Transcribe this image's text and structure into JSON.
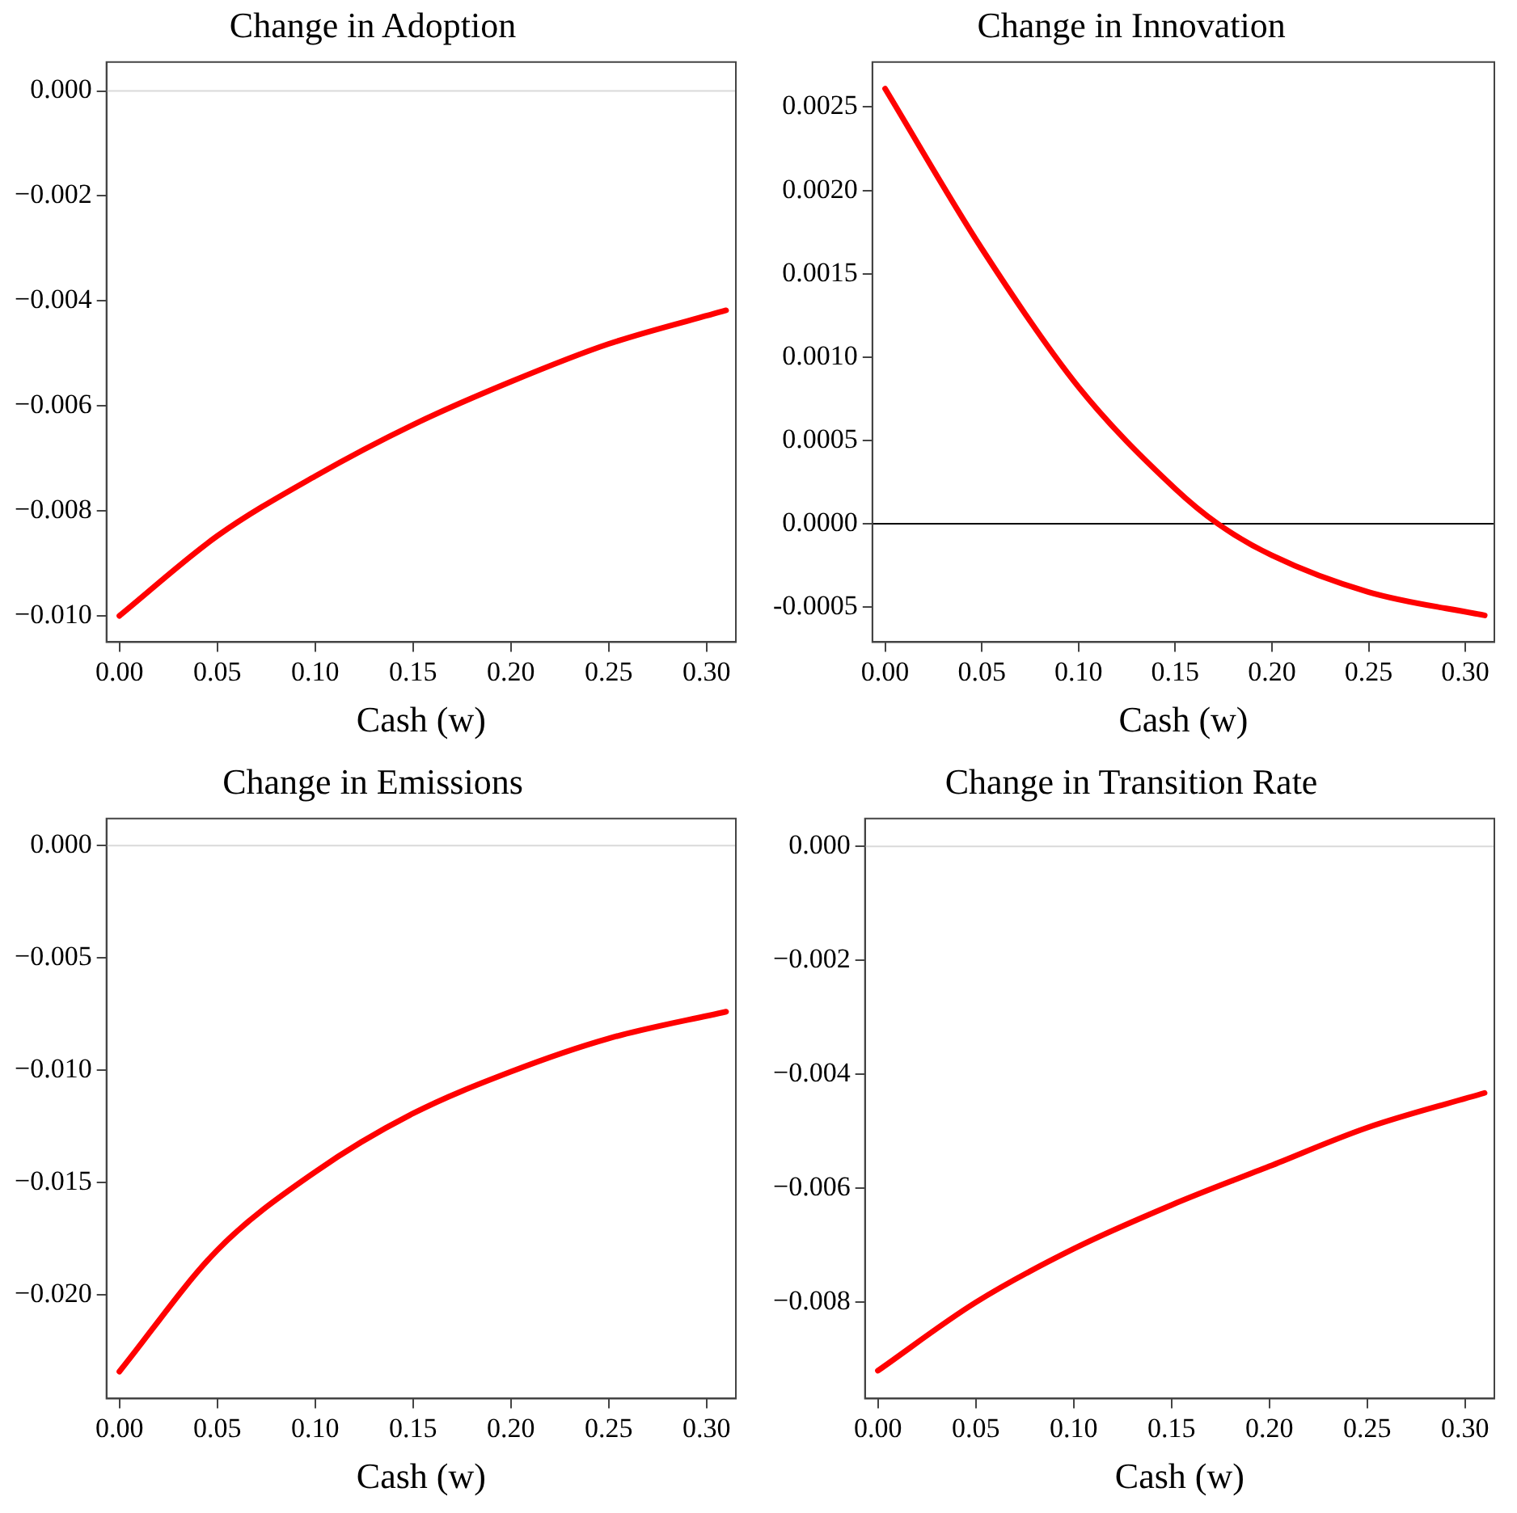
{
  "chart_data": [
    {
      "type": "line",
      "title": "Change in Adoption",
      "xlabel": "Cash (w)",
      "x": [
        0,
        0.05,
        0.1,
        0.15,
        0.2,
        0.25,
        0.31
      ],
      "series": [
        {
          "color": "#ff0000",
          "values": [
            -0.01,
            -0.00848,
            -0.00734,
            -0.00636,
            -0.00554,
            -0.00482,
            -0.00418
          ]
        }
      ],
      "xlim": [
        -0.0066,
        0.315
      ],
      "xticks": [
        {
          "value": 0,
          "label": "0.00"
        },
        0.05,
        {
          "value": 0.1,
          "label": "0.10"
        },
        0.15,
        {
          "value": 0.2,
          "label": "0.20"
        },
        0.25,
        {
          "value": 0.3,
          "label": "0.30"
        }
      ],
      "ylim": [
        -0.0105,
        0.00055
      ],
      "yticks": [
        {
          "value": -0.01,
          "label": "−0.010"
        },
        {
          "value": -0.008,
          "label": "−0.008"
        },
        {
          "value": -0.006,
          "label": "−0.006"
        },
        {
          "value": -0.004,
          "label": "−0.004"
        },
        {
          "value": -0.002,
          "label": "−0.002"
        },
        {
          "value": 0,
          "label": "0.000"
        }
      ],
      "ref_lines": [
        {
          "axis": "y",
          "value": 0,
          "color": "#d9d9d9"
        }
      ],
      "grid": false,
      "legend": false
    },
    {
      "type": "line",
      "title": "Change in Innovation",
      "xlabel": "Cash (w)",
      "x": [
        0,
        0.05,
        0.1,
        0.15,
        0.172,
        0.2,
        0.25,
        0.31
      ],
      "series": [
        {
          "color": "#ff0000",
          "values": [
            0.00261,
            0.00165,
            0.00082,
            0.00021,
            0,
            -0.00019,
            -0.00041,
            -0.00055
          ]
        }
      ],
      "xlim": [
        -0.0066,
        0.315
      ],
      "xticks": [
        {
          "value": 0,
          "label": "0.00"
        },
        0.05,
        {
          "value": 0.1,
          "label": "0.10"
        },
        0.15,
        {
          "value": 0.2,
          "label": "0.20"
        },
        0.25,
        {
          "value": 0.3,
          "label": "0.30"
        }
      ],
      "ylim": [
        -0.00071,
        0.00277
      ],
      "yticks": [
        {
          "value": -0.0005,
          "label": "-0.0005"
        },
        {
          "value": 0,
          "label": "0.0000"
        },
        0.0005,
        {
          "value": 0.001,
          "label": "0.0010"
        },
        0.0015,
        {
          "value": 0.002,
          "label": "0.0020"
        },
        0.0025
      ],
      "ref_lines": [
        {
          "axis": "y",
          "value": 0,
          "color": "#000000"
        }
      ],
      "grid": false,
      "legend": false
    },
    {
      "type": "line",
      "title": "Change in Emissions",
      "xlabel": "Cash (w)",
      "x": [
        0,
        0.05,
        0.1,
        0.15,
        0.2,
        0.25,
        0.31
      ],
      "series": [
        {
          "color": "#ff0000",
          "values": [
            -0.0234,
            -0.018,
            -0.01452,
            -0.01192,
            -0.01006,
            -0.00858,
            -0.00739
          ]
        }
      ],
      "xlim": [
        -0.0066,
        0.315
      ],
      "xticks": [
        {
          "value": 0,
          "label": "0.00"
        },
        0.05,
        {
          "value": 0.1,
          "label": "0.10"
        },
        0.15,
        {
          "value": 0.2,
          "label": "0.20"
        },
        0.25,
        {
          "value": 0.3,
          "label": "0.30"
        }
      ],
      "ylim": [
        -0.0246,
        0.0012
      ],
      "yticks": [
        {
          "value": -0.02,
          "label": "−0.020"
        },
        {
          "value": -0.015,
          "label": "−0.015"
        },
        {
          "value": -0.01,
          "label": "−0.010"
        },
        {
          "value": -0.005,
          "label": "−0.005"
        },
        {
          "value": 0,
          "label": "0.000"
        }
      ],
      "ref_lines": [
        {
          "axis": "y",
          "value": 0,
          "color": "#d9d9d9"
        }
      ],
      "grid": false,
      "legend": false
    },
    {
      "type": "line",
      "title": "Change in Transition Rate",
      "xlabel": "Cash (w)",
      "x": [
        0,
        0.05,
        0.1,
        0.15,
        0.2,
        0.25,
        0.31
      ],
      "series": [
        {
          "color": "#ff0000",
          "values": [
            -0.00921,
            -0.00801,
            -0.00707,
            -0.0063,
            -0.00562,
            -0.00494,
            -0.00433
          ]
        }
      ],
      "xlim": [
        -0.0066,
        0.315
      ],
      "xticks": [
        {
          "value": 0,
          "label": "0.00"
        },
        0.05,
        {
          "value": 0.1,
          "label": "0.10"
        },
        0.15,
        {
          "value": 0.2,
          "label": "0.20"
        },
        0.25,
        {
          "value": 0.3,
          "label": "0.30"
        }
      ],
      "ylim": [
        -0.0097,
        0.00049
      ],
      "yticks": [
        {
          "value": -0.008,
          "label": "−0.008"
        },
        {
          "value": -0.006,
          "label": "−0.006"
        },
        {
          "value": -0.004,
          "label": "−0.004"
        },
        {
          "value": -0.002,
          "label": "−0.002"
        },
        {
          "value": 0,
          "label": "0.000"
        }
      ],
      "ref_lines": [
        {
          "axis": "y",
          "value": 0,
          "color": "#d9d9d9"
        }
      ],
      "grid": false,
      "legend": false
    }
  ]
}
